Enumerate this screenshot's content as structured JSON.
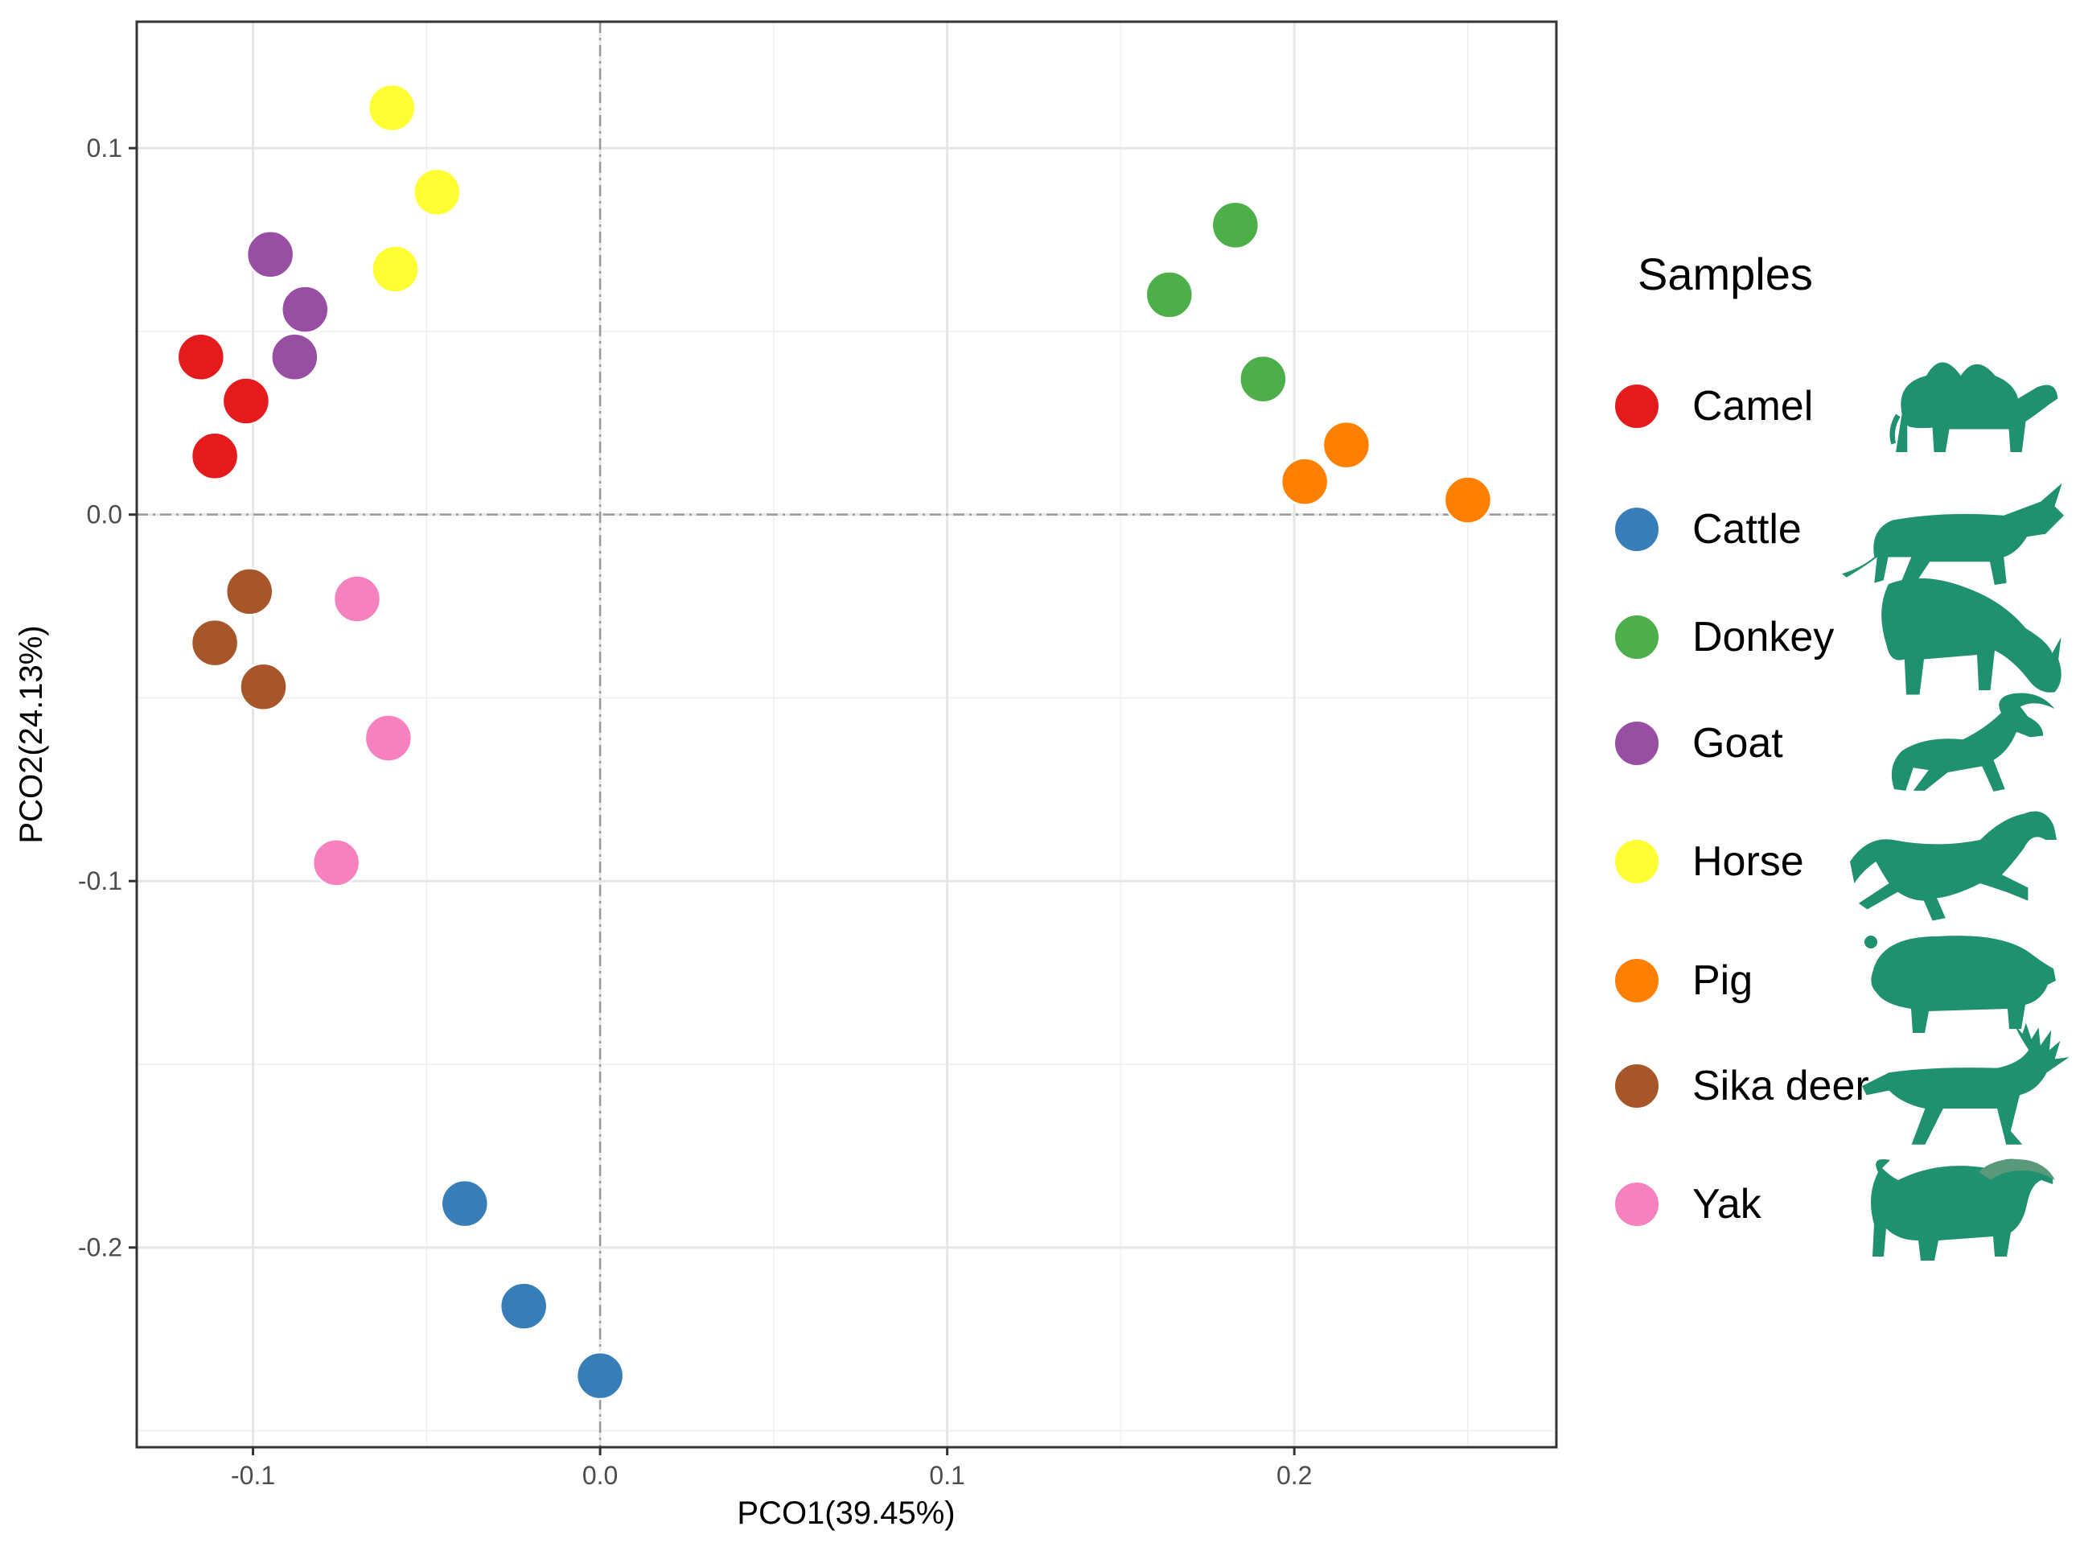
{
  "chart_data": {
    "type": "scatter",
    "title": "",
    "xlabel": "PCO1(39.45%)",
    "ylabel": "PCO2(24.13%)",
    "xlim": [
      -0.1335,
      0.2755
    ],
    "ylim": [
      -0.2545,
      0.1345
    ],
    "xticks": [
      -0.1,
      0.0,
      0.1,
      0.2
    ],
    "xtick_labels": [
      "-0.1",
      "0.0",
      "0.1",
      "0.2"
    ],
    "yticks": [
      -0.2,
      -0.1,
      0.0,
      0.1
    ],
    "ytick_labels": [
      "-0.2",
      "-0.1",
      "0.0",
      "0.1"
    ],
    "x_minor": [
      -0.05,
      0.05,
      0.15,
      0.25
    ],
    "y_minor": [
      -0.25,
      -0.15,
      -0.05,
      0.05
    ],
    "reference_lines": {
      "x": 0,
      "y": 0
    },
    "grid": true,
    "legend": {
      "title": "Samples",
      "position": "right"
    },
    "series": [
      {
        "name": "Camel",
        "color": "#e41a1c",
        "icon": "camel-silhouette-icon",
        "points": [
          [
            -0.115,
            0.043
          ],
          [
            -0.102,
            0.031
          ],
          [
            -0.111,
            0.016
          ]
        ]
      },
      {
        "name": "Cattle",
        "color": "#377eb8",
        "icon": "cattle-silhouette-icon",
        "points": [
          [
            -0.039,
            -0.188
          ],
          [
            -0.022,
            -0.216
          ],
          [
            0.0,
            -0.235
          ]
        ]
      },
      {
        "name": "Donkey",
        "color": "#4daf4a",
        "icon": "donkey-silhouette-icon",
        "points": [
          [
            0.183,
            0.079
          ],
          [
            0.164,
            0.06
          ],
          [
            0.191,
            0.037
          ]
        ]
      },
      {
        "name": "Goat",
        "color": "#984ea3",
        "icon": "goat-silhouette-icon",
        "points": [
          [
            -0.095,
            0.071
          ],
          [
            -0.085,
            0.056
          ],
          [
            -0.088,
            0.043
          ]
        ]
      },
      {
        "name": "Horse",
        "color": "#ffff33",
        "icon": "horse-silhouette-icon",
        "points": [
          [
            -0.06,
            0.111
          ],
          [
            -0.047,
            0.088
          ],
          [
            -0.059,
            0.067
          ]
        ]
      },
      {
        "name": "Pig",
        "color": "#ff7f00",
        "icon": "pig-silhouette-icon",
        "points": [
          [
            0.215,
            0.019
          ],
          [
            0.203,
            0.009
          ],
          [
            0.25,
            0.004
          ]
        ]
      },
      {
        "name": "Sika deer",
        "color": "#a65628",
        "icon": "sika-deer-silhouette-icon",
        "points": [
          [
            -0.101,
            -0.021
          ],
          [
            -0.111,
            -0.035
          ],
          [
            -0.097,
            -0.047
          ]
        ]
      },
      {
        "name": "Yak",
        "color": "#f781bf",
        "icon": "yak-silhouette-icon",
        "points": [
          [
            -0.07,
            -0.023
          ],
          [
            -0.061,
            -0.061
          ],
          [
            -0.076,
            -0.095
          ]
        ]
      }
    ],
    "silhouette_color": "#1f9070"
  }
}
